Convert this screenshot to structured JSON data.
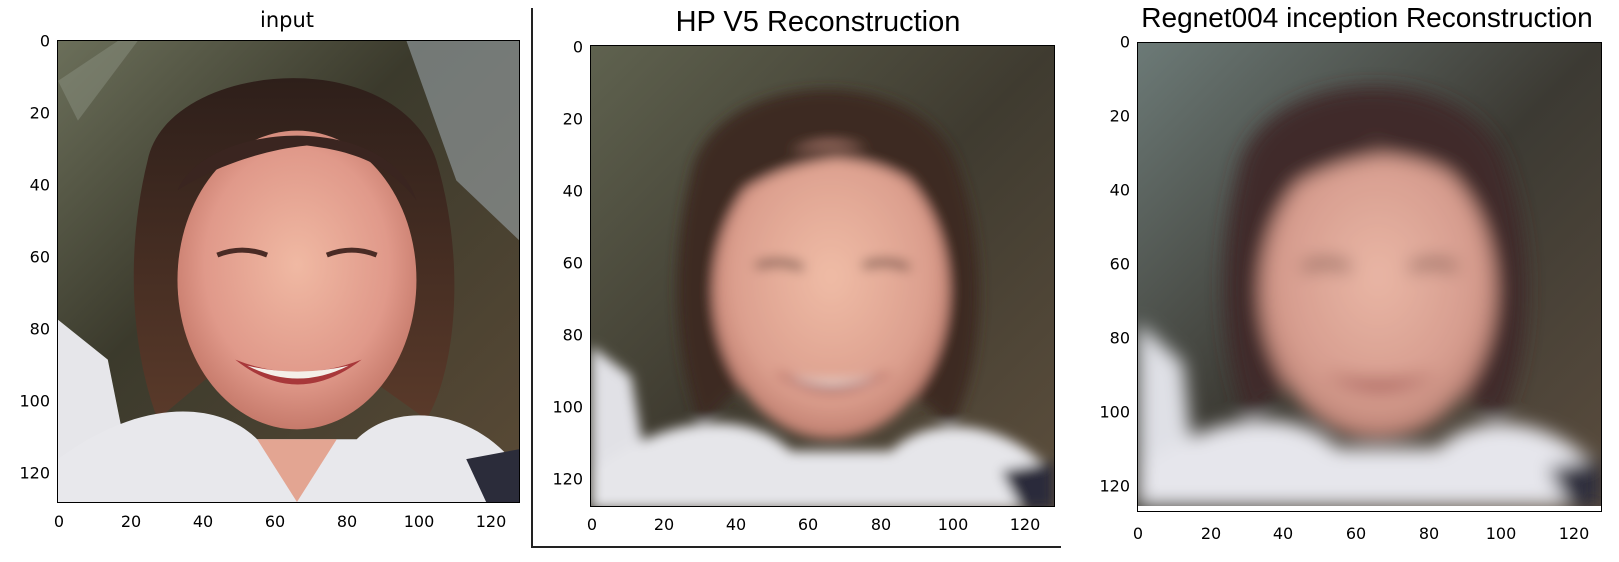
{
  "panels": [
    {
      "id": "input",
      "title": "input",
      "x_ticks": [
        "0",
        "20",
        "40",
        "60",
        "80",
        "100",
        "120"
      ],
      "y_ticks": [
        "0",
        "20",
        "40",
        "60",
        "80",
        "100",
        "120"
      ]
    },
    {
      "id": "hp-v5",
      "title": "HP V5 Reconstruction",
      "x_ticks": [
        "0",
        "20",
        "40",
        "60",
        "80",
        "100",
        "120"
      ],
      "y_ticks": [
        "0",
        "20",
        "40",
        "60",
        "80",
        "100",
        "120"
      ]
    },
    {
      "id": "regnet004",
      "title": "Regnet004 inception Reconstruction",
      "x_ticks": [
        "0",
        "20",
        "40",
        "60",
        "80",
        "100",
        "120"
      ],
      "y_ticks": [
        "0",
        "20",
        "40",
        "60",
        "80",
        "100",
        "120"
      ]
    }
  ],
  "image_description_colors": {
    "background_trees": "#3b3a2c",
    "sky": "#a9b2b8",
    "hair": "#3a2520",
    "skin": "#e2a38f",
    "collar": "#e8e8ec"
  }
}
